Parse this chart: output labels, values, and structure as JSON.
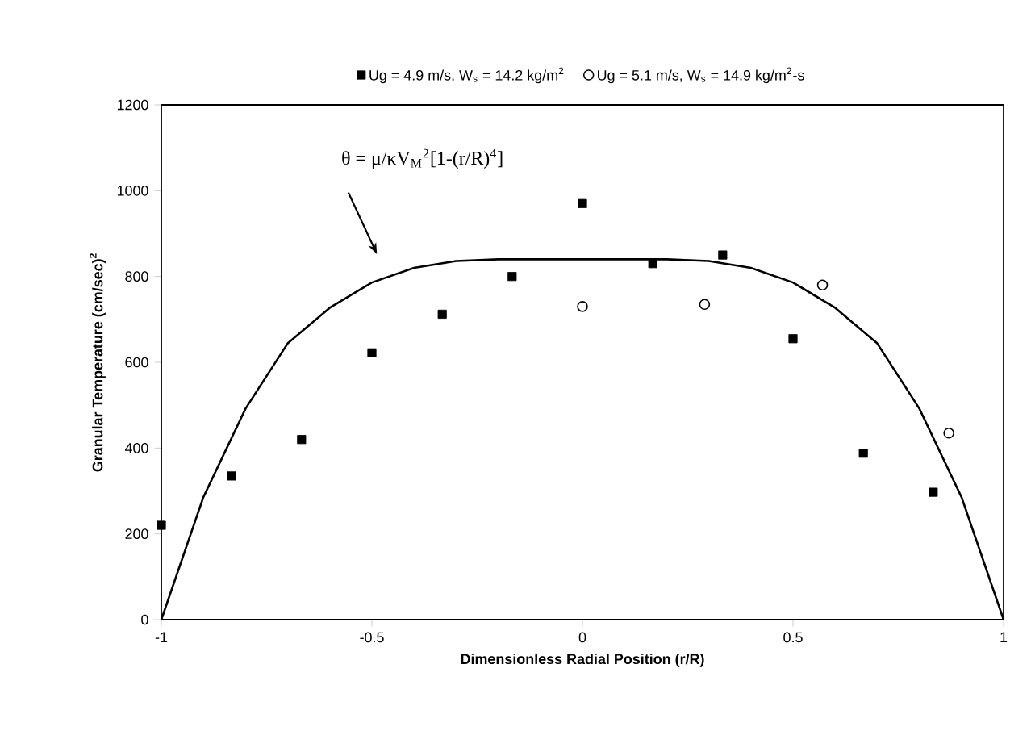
{
  "chart_data": {
    "type": "scatter",
    "xlabel": "Dimensionless Radial Position (r/R)",
    "ylabel": "Granular Temperature (cm/sec)$^{2}$",
    "xlim": [
      -1,
      1
    ],
    "xticks": [
      -1,
      -0.5,
      0,
      0.5,
      1
    ],
    "ylim": [
      0,
      1200
    ],
    "yticks": [
      0,
      200,
      400,
      600,
      800,
      1000,
      1200
    ],
    "grid": false,
    "legend": "top",
    "annotations": [
      "θ = μ/κV$_{M}$$^{2}$[1-(r/R)$^{4}$]"
    ],
    "series": [
      {
        "name": "Ug = 4.9 m/s, W$_{s}$ = 14.2 kg/m$^{2}$",
        "color": "#000000",
        "marker": "square",
        "x": [
          -1,
          -0.833,
          -0.667,
          -0.5,
          -0.333,
          -0.167,
          0,
          0.167,
          0.333,
          0.5,
          0.667,
          0.833
        ],
        "values": [
          220,
          335,
          420,
          622,
          712,
          800,
          970,
          830,
          850,
          655,
          388,
          297
        ]
      },
      {
        "name": "Ug = 5.1 m/s, W$_{s}$ = 14.9 kg/m$^{2}$-s",
        "color": "#000000",
        "marker": "circle",
        "x": [
          0,
          0.29,
          0.57,
          0.87
        ],
        "values": [
          730,
          735,
          780,
          435
        ]
      },
      {
        "type": "line",
        "color": "#000000",
        "marker": "none",
        "x": [
          -1,
          -0.9,
          -0.8,
          -0.7,
          -0.6,
          -0.5,
          -0.4,
          -0.3,
          -0.2,
          0,
          0.2,
          0.3,
          0.4,
          0.5,
          0.6,
          0.7,
          0.8,
          0.9,
          1
        ],
        "values": [
          0,
          286,
          492,
          644,
          727,
          786,
          820,
          836,
          840,
          840,
          840,
          836,
          820,
          786,
          727,
          644,
          492,
          286,
          0
        ]
      }
    ]
  }
}
